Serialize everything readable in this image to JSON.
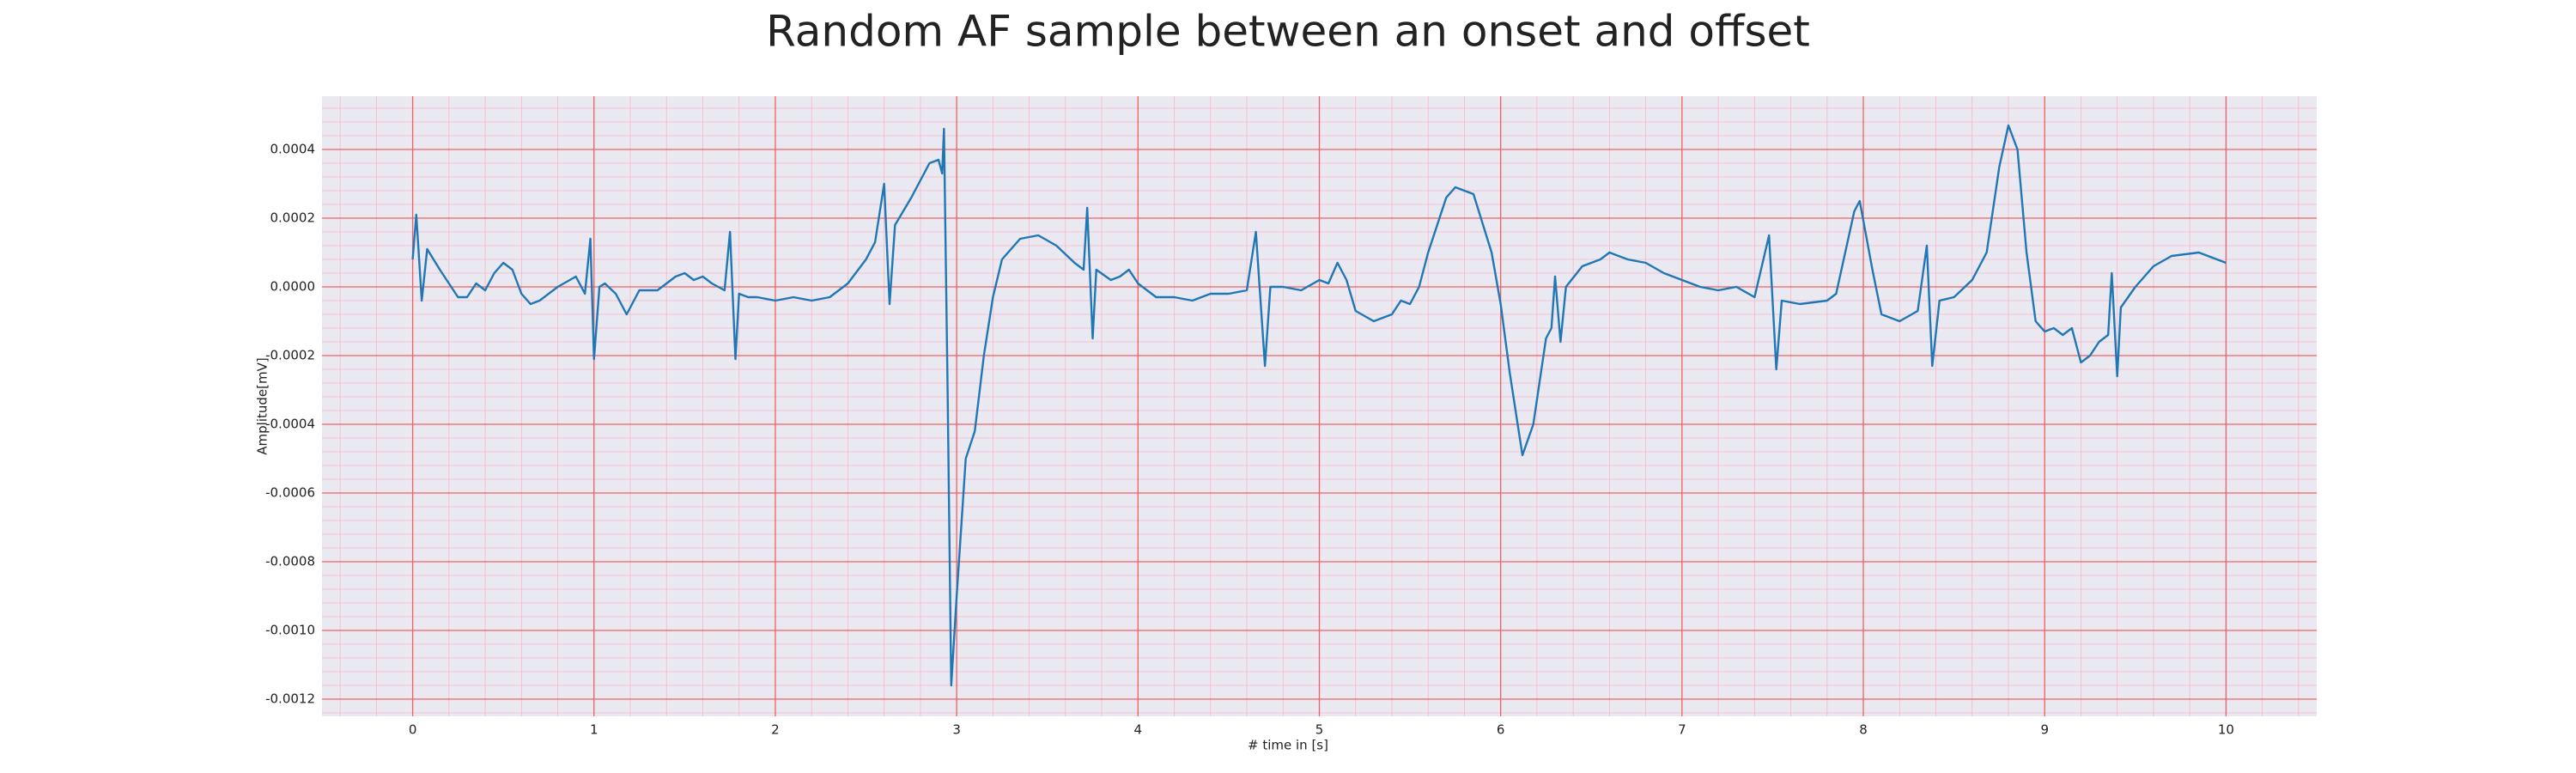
{
  "chart_data": {
    "type": "line",
    "title": "Random AF sample between an onset and offset",
    "x_label": "# time in [s]",
    "y_label": "Amplitude[mV]",
    "color": "#1f77b4",
    "grid": true,
    "minor_grid": true,
    "background": "#eae9f2",
    "grid_color": "#f06060",
    "minor_grid_color": "#f4b8c4",
    "xlim": [
      -0.5,
      10.5
    ],
    "ylim": [
      -0.00125,
      0.000555
    ],
    "xticks": [
      0,
      1,
      2,
      3,
      4,
      5,
      6,
      7,
      8,
      9,
      10
    ],
    "yticks": [
      -0.0012,
      {
        "value": -0.001,
        "label": "-0.0010"
      },
      -0.0008,
      -0.0006,
      -0.0004,
      -0.0002,
      {
        "value": 0,
        "label": "0.0000"
      },
      0.0002,
      0.0004
    ],
    "x": [
      0.0,
      0.02,
      0.05,
      0.08,
      0.15,
      0.25,
      0.3,
      0.35,
      0.4,
      0.45,
      0.5,
      0.55,
      0.6,
      0.65,
      0.7,
      0.8,
      0.9,
      0.95,
      0.98,
      1.0,
      1.03,
      1.06,
      1.12,
      1.18,
      1.25,
      1.35,
      1.45,
      1.5,
      1.55,
      1.6,
      1.65,
      1.72,
      1.75,
      1.78,
      1.8,
      1.85,
      1.9,
      2.0,
      2.1,
      2.2,
      2.3,
      2.4,
      2.5,
      2.55,
      2.6,
      2.63,
      2.66,
      2.75,
      2.85,
      2.9,
      2.92,
      2.93,
      2.95,
      2.97,
      3.0,
      3.05,
      3.1,
      3.15,
      3.2,
      3.25,
      3.35,
      3.45,
      3.55,
      3.65,
      3.7,
      3.72,
      3.75,
      3.77,
      3.85,
      3.9,
      3.95,
      4.0,
      4.1,
      4.2,
      4.3,
      4.4,
      4.5,
      4.6,
      4.65,
      4.7,
      4.73,
      4.8,
      4.9,
      5.0,
      5.05,
      5.1,
      5.15,
      5.2,
      5.3,
      5.4,
      5.45,
      5.5,
      5.55,
      5.6,
      5.7,
      5.75,
      5.85,
      5.95,
      6.0,
      6.05,
      6.12,
      6.18,
      6.25,
      6.28,
      6.3,
      6.33,
      6.36,
      6.45,
      6.55,
      6.6,
      6.7,
      6.8,
      6.9,
      7.0,
      7.1,
      7.2,
      7.3,
      7.4,
      7.48,
      7.52,
      7.55,
      7.65,
      7.8,
      7.85,
      7.95,
      7.98,
      8.05,
      8.1,
      8.2,
      8.3,
      8.35,
      8.38,
      8.42,
      8.5,
      8.6,
      8.68,
      8.75,
      8.8,
      8.85,
      8.9,
      8.95,
      9.0,
      9.05,
      9.1,
      9.15,
      9.2,
      9.25,
      9.3,
      9.35,
      9.37,
      9.4,
      9.42,
      9.5,
      9.6,
      9.7,
      9.85,
      9.95,
      10.0
    ],
    "values": [
      8e-05,
      0.00021,
      -4e-05,
      0.00011,
      5e-05,
      -3e-05,
      -3e-05,
      1e-05,
      -1e-05,
      4e-05,
      7e-05,
      5e-05,
      -2e-05,
      -5e-05,
      -4e-05,
      0.0,
      3e-05,
      -2e-05,
      0.00014,
      -0.00021,
      0.0,
      1e-05,
      -2e-05,
      -8e-05,
      -1e-05,
      -1e-05,
      3e-05,
      4e-05,
      2e-05,
      3e-05,
      1e-05,
      -1e-05,
      0.00016,
      -0.00021,
      -2e-05,
      -3e-05,
      -3e-05,
      -4e-05,
      -3e-05,
      -4e-05,
      -3e-05,
      1e-05,
      8e-05,
      0.00013,
      0.0003,
      -5e-05,
      0.00018,
      0.00026,
      0.00036,
      0.00037,
      0.00033,
      0.00046,
      -0.0003,
      -0.00116,
      -0.0009,
      -0.0005,
      -0.00042,
      -0.0002,
      -3e-05,
      8e-05,
      0.00014,
      0.00015,
      0.00012,
      7e-05,
      5e-05,
      0.00023,
      -0.00015,
      5e-05,
      2e-05,
      3e-05,
      5e-05,
      1e-05,
      -3e-05,
      -3e-05,
      -4e-05,
      -2e-05,
      -2e-05,
      -1e-05,
      0.00016,
      -0.00023,
      0.0,
      0.0,
      -1e-05,
      2e-05,
      1e-05,
      7e-05,
      2e-05,
      -7e-05,
      -0.0001,
      -8e-05,
      -4e-05,
      -5e-05,
      0.0,
      0.0001,
      0.00026,
      0.00029,
      0.00027,
      0.0001,
      -5e-05,
      -0.00025,
      -0.00049,
      -0.0004,
      -0.00015,
      -0.00012,
      3e-05,
      -0.00016,
      0.0,
      6e-05,
      8e-05,
      0.0001,
      8e-05,
      7e-05,
      4e-05,
      2e-05,
      0.0,
      -1e-05,
      0.0,
      -3e-05,
      0.00015,
      -0.00024,
      -4e-05,
      -5e-05,
      -4e-05,
      -2e-05,
      0.00022,
      0.00025,
      5e-05,
      -8e-05,
      -0.0001,
      -7e-05,
      0.00012,
      -0.00023,
      -4e-05,
      -3e-05,
      2e-05,
      0.0001,
      0.00035,
      0.00047,
      0.0004,
      0.0001,
      -0.0001,
      -0.00013,
      -0.00012,
      -0.00014,
      -0.00012,
      -0.00022,
      -0.0002,
      -0.00016,
      -0.00014,
      4e-05,
      -0.00026,
      -6e-05,
      0.0,
      6e-05,
      9e-05,
      0.0001,
      8e-05,
      7e-05
    ]
  }
}
